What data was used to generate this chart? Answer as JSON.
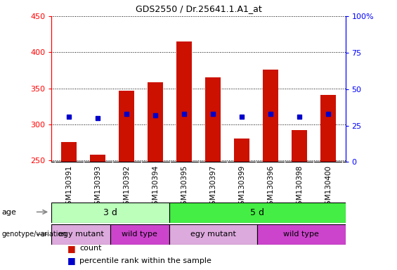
{
  "title": "GDS2550 / Dr.25641.1.A1_at",
  "samples": [
    "GSM130391",
    "GSM130393",
    "GSM130392",
    "GSM130394",
    "GSM130395",
    "GSM130397",
    "GSM130399",
    "GSM130396",
    "GSM130398",
    "GSM130400"
  ],
  "count_values": [
    276,
    258,
    347,
    358,
    415,
    365,
    281,
    376,
    292,
    341
  ],
  "percentile_values": [
    31,
    30,
    33,
    32,
    33,
    33,
    31,
    33,
    31,
    33
  ],
  "ylim_left": [
    248,
    450
  ],
  "ylim_right": [
    0,
    100
  ],
  "yticks_left": [
    250,
    300,
    350,
    400,
    450
  ],
  "yticks_right": [
    0,
    25,
    50,
    75,
    100
  ],
  "bar_color": "#cc1100",
  "dot_color": "#0000cc",
  "bar_bottom": 248,
  "age_groups": [
    {
      "label": "3 d",
      "start": 0,
      "end": 4,
      "color": "#bbffbb"
    },
    {
      "label": "5 d",
      "start": 4,
      "end": 10,
      "color": "#44ee44"
    }
  ],
  "genotype_groups": [
    {
      "label": "egy mutant",
      "start": 0,
      "end": 2,
      "color": "#ddaadd"
    },
    {
      "label": "wild type",
      "start": 2,
      "end": 4,
      "color": "#cc44cc"
    },
    {
      "label": "egy mutant",
      "start": 4,
      "end": 7,
      "color": "#ddaadd"
    },
    {
      "label": "wild type",
      "start": 7,
      "end": 10,
      "color": "#cc44cc"
    }
  ],
  "legend_items": [
    {
      "label": "count",
      "color": "#cc1100"
    },
    {
      "label": "percentile rank within the sample",
      "color": "#0000cc"
    }
  ],
  "grid_color": "black",
  "plot_bg_color": "white",
  "xtick_bg_color": "#d0d0d0"
}
